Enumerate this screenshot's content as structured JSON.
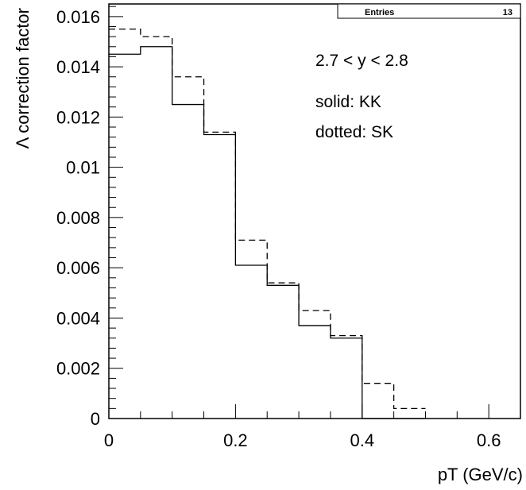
{
  "chart_data": {
    "type": "histogram",
    "xlabel": "pT (GeV/c)",
    "ylabel": "Λ correction factor",
    "xlim": [
      0,
      0.65
    ],
    "ylim": [
      0,
      0.0165
    ],
    "x_ticks": [
      "0",
      "0.2",
      "0.4",
      "0.6"
    ],
    "y_ticks": [
      "0",
      "0.002",
      "0.004",
      "0.006",
      "0.008",
      "0.01",
      "0.012",
      "0.014",
      "0.016"
    ],
    "stats_box": {
      "label": "Entries",
      "value": "13"
    },
    "annotations": [
      "2.7 < y < 2.8",
      "solid: KK",
      "dotted: SK"
    ],
    "bin_edges": [
      0,
      0.05,
      0.1,
      0.15,
      0.2,
      0.25,
      0.3,
      0.35,
      0.4,
      0.45,
      0.5
    ],
    "series": [
      {
        "style": "solid",
        "values": [
          0.0145,
          0.0148,
          0.0125,
          0.0113,
          0.0061,
          0.0053,
          0.0037,
          0.0032,
          0,
          0
        ]
      },
      {
        "style": "dashed",
        "values": [
          0.0155,
          0.0152,
          0.0136,
          0.0114,
          0.0071,
          0.0054,
          0.0043,
          0.0033,
          0.0014,
          0.0004
        ]
      }
    ]
  }
}
